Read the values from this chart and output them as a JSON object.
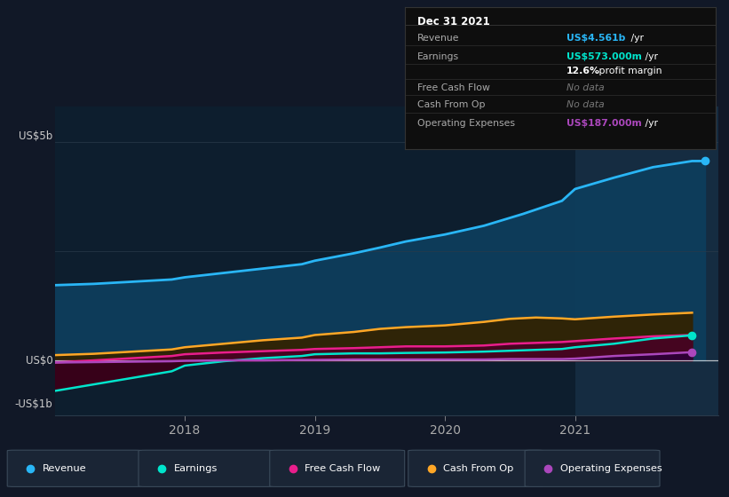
{
  "bg_color": "#111827",
  "plot_bg_color": "#0d1e2e",
  "ylabel_top": "US$5b",
  "ylabel_zero": "US$0",
  "ylabel_bottom": "-US$1b",
  "x_ticks": [
    2018,
    2019,
    2020,
    2021
  ],
  "ylim_min": -1.25,
  "ylim_max": 5.8,
  "y_zero": 0.0,
  "highlight_x_start": 2021.0,
  "x_min": 2017.0,
  "x_max": 2022.1,
  "series": {
    "revenue": {
      "color": "#29b6f6",
      "fill_alpha": 0.9,
      "fill_color": "#0d3d5c",
      "label": "Revenue",
      "x": [
        2017.0,
        2017.3,
        2017.6,
        2017.9,
        2018.0,
        2018.3,
        2018.6,
        2018.9,
        2019.0,
        2019.3,
        2019.5,
        2019.7,
        2020.0,
        2020.3,
        2020.6,
        2020.9,
        2021.0,
        2021.3,
        2021.6,
        2021.9,
        2022.0
      ],
      "y": [
        1.72,
        1.75,
        1.8,
        1.85,
        1.9,
        2.0,
        2.1,
        2.2,
        2.28,
        2.45,
        2.58,
        2.72,
        2.88,
        3.08,
        3.35,
        3.65,
        3.92,
        4.18,
        4.42,
        4.56,
        4.561
      ]
    },
    "cash_from_op": {
      "color": "#ffa726",
      "fill_alpha": 0.85,
      "fill_color": "#3d2800",
      "label": "Cash From Op",
      "x": [
        2017.0,
        2017.3,
        2017.6,
        2017.9,
        2018.0,
        2018.3,
        2018.6,
        2018.9,
        2019.0,
        2019.3,
        2019.5,
        2019.7,
        2020.0,
        2020.3,
        2020.5,
        2020.7,
        2020.9,
        2021.0,
        2021.3,
        2021.6,
        2021.9
      ],
      "y": [
        0.12,
        0.15,
        0.2,
        0.25,
        0.3,
        0.38,
        0.46,
        0.52,
        0.58,
        0.65,
        0.72,
        0.76,
        0.8,
        0.88,
        0.95,
        0.98,
        0.96,
        0.94,
        1.0,
        1.05,
        1.09
      ]
    },
    "free_cash_flow": {
      "color": "#e91e8c",
      "fill_alpha": 0.7,
      "fill_color": "#5c0030",
      "label": "Free Cash Flow",
      "x": [
        2017.0,
        2017.3,
        2017.6,
        2017.9,
        2018.0,
        2018.3,
        2018.6,
        2018.9,
        2019.0,
        2019.3,
        2019.5,
        2019.7,
        2020.0,
        2020.3,
        2020.5,
        2020.7,
        2020.9,
        2021.0,
        2021.3,
        2021.6,
        2021.9
      ],
      "y": [
        -0.05,
        0.0,
        0.05,
        0.1,
        0.14,
        0.18,
        0.21,
        0.24,
        0.26,
        0.28,
        0.3,
        0.32,
        0.32,
        0.34,
        0.38,
        0.4,
        0.42,
        0.44,
        0.5,
        0.55,
        0.58
      ]
    },
    "earnings": {
      "color": "#00e5cc",
      "fill_alpha": 0.7,
      "fill_color": "#003d33",
      "label": "Earnings",
      "x": [
        2017.0,
        2017.3,
        2017.6,
        2017.9,
        2018.0,
        2018.3,
        2018.6,
        2018.9,
        2019.0,
        2019.3,
        2019.5,
        2019.7,
        2020.0,
        2020.3,
        2020.5,
        2020.7,
        2020.9,
        2021.0,
        2021.3,
        2021.6,
        2021.9
      ],
      "y": [
        -0.7,
        -0.55,
        -0.4,
        -0.25,
        -0.12,
        -0.02,
        0.05,
        0.1,
        0.14,
        0.16,
        0.16,
        0.17,
        0.18,
        0.2,
        0.22,
        0.24,
        0.26,
        0.3,
        0.38,
        0.5,
        0.573
      ]
    },
    "operating_expenses": {
      "color": "#ab47bc",
      "fill_alpha": 0.7,
      "fill_color": "#2d0040",
      "label": "Operating Expenses",
      "x": [
        2017.0,
        2017.3,
        2017.6,
        2017.9,
        2018.0,
        2018.3,
        2018.6,
        2018.9,
        2019.0,
        2019.3,
        2019.5,
        2019.7,
        2020.0,
        2020.3,
        2020.5,
        2020.7,
        2020.9,
        2021.0,
        2021.3,
        2021.6,
        2021.9
      ],
      "y": [
        -0.05,
        -0.04,
        -0.03,
        -0.02,
        -0.01,
        0.0,
        0.0,
        0.01,
        0.01,
        0.02,
        0.02,
        0.02,
        0.02,
        0.02,
        0.03,
        0.03,
        0.03,
        0.04,
        0.1,
        0.14,
        0.187
      ]
    }
  },
  "legend_items": [
    {
      "label": "Revenue",
      "color": "#29b6f6"
    },
    {
      "label": "Earnings",
      "color": "#00e5cc"
    },
    {
      "label": "Free Cash Flow",
      "color": "#e91e8c"
    },
    {
      "label": "Cash From Op",
      "color": "#ffa726"
    },
    {
      "label": "Operating Expenses",
      "color": "#ab47bc"
    }
  ],
  "infobox": {
    "title": "Dec 31 2021",
    "rows": [
      {
        "label": "Revenue",
        "val": "US$4.561b",
        "suffix": " /yr",
        "vcol": "#29b6f6",
        "nodata": false
      },
      {
        "label": "Earnings",
        "val": "US$573.000m",
        "suffix": " /yr",
        "vcol": "#00e5cc",
        "nodata": false
      },
      {
        "label": "",
        "val": "12.6%",
        "suffix": " profit margin",
        "vcol": "#ffffff",
        "nodata": false
      },
      {
        "label": "Free Cash Flow",
        "val": "No data",
        "suffix": "",
        "vcol": "#777777",
        "nodata": true
      },
      {
        "label": "Cash From Op",
        "val": "No data",
        "suffix": "",
        "vcol": "#777777",
        "nodata": true
      },
      {
        "label": "Operating Expenses",
        "val": "US$187.000m",
        "suffix": " /yr",
        "vcol": "#ab47bc",
        "nodata": false
      }
    ]
  }
}
